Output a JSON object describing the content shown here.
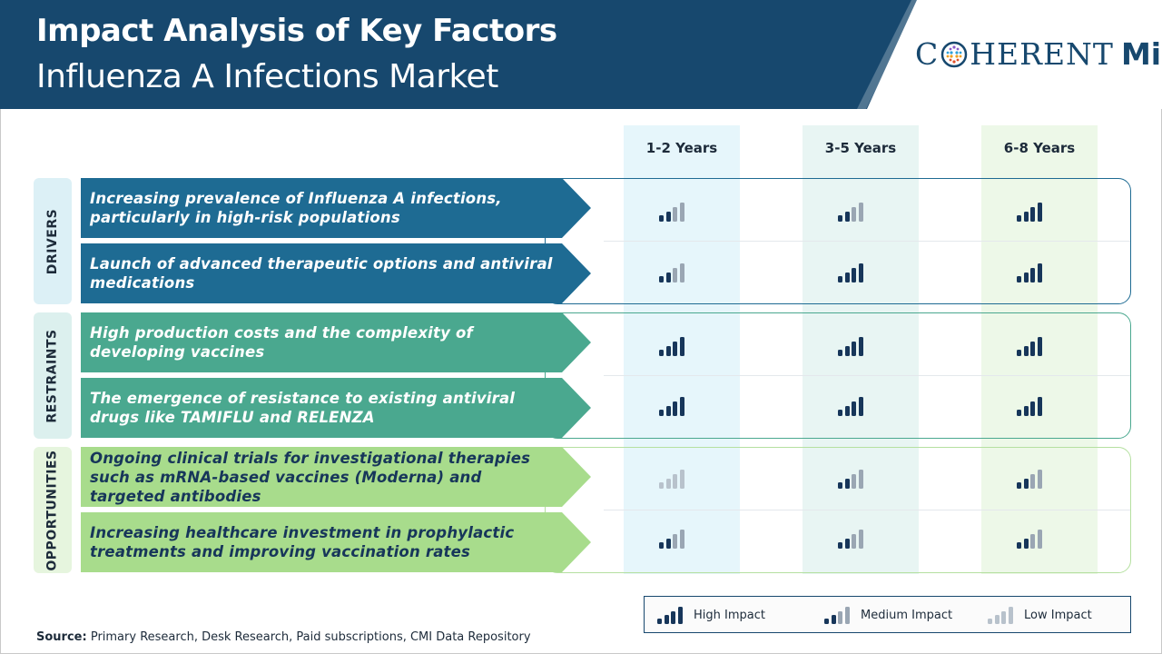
{
  "header": {
    "title": "Impact Analysis of Key Factors",
    "subtitle": "Influenza A Infections Market"
  },
  "logo": {
    "left": "C",
    "middle": "HERENT",
    "right": "Mi"
  },
  "colors": {
    "header": "#17486e",
    "driver": "#1e6b93",
    "restraint": "#4aa88f",
    "opportunity": "#a8dc8c",
    "high": "#17365a",
    "medium_light": "#9aa6b3",
    "low": "#b8c2cc"
  },
  "columns": [
    {
      "label": "1-2 Years",
      "bg": "#e6f6fb"
    },
    {
      "label": "3-5 Years",
      "bg": "#e8f5f3"
    },
    {
      "label": "6-8 Years",
      "bg": "#edf8e8"
    }
  ],
  "categories": [
    {
      "label": "DRIVERS",
      "box_bg": "#dcf0f6",
      "outline": "#1e6b93"
    },
    {
      "label": "RESTRAINTS",
      "box_bg": "#dcf0ee",
      "outline": "#4aa88f"
    },
    {
      "label": "OPPORTUNITIES",
      "box_bg": "#e6f5de",
      "outline": "#b5e0a0"
    }
  ],
  "factors": [
    {
      "category": 0,
      "text": "Increasing prevalence of Influenza A infections, particularly in high-risk populations",
      "impacts": [
        "medium",
        "medium",
        "high"
      ]
    },
    {
      "category": 0,
      "text": "Launch of advanced therapeutic options and antiviral medications",
      "impacts": [
        "medium",
        "high",
        "high"
      ]
    },
    {
      "category": 1,
      "text": "High production costs and the complexity of developing vaccines",
      "impacts": [
        "high",
        "high",
        "high"
      ]
    },
    {
      "category": 1,
      "text": "The emergence of resistance to existing antiviral drugs like TAMIFLU and RELENZA",
      "impacts": [
        "high",
        "high",
        "high"
      ]
    },
    {
      "category": 2,
      "text": "Ongoing clinical trials for investigational therapies such as mRNA-based vaccines (Moderna) and targeted antibodies",
      "impacts": [
        "low",
        "medium",
        "medium"
      ]
    },
    {
      "category": 2,
      "text": "Increasing healthcare investment in prophylactic treatments and improving vaccination rates",
      "impacts": [
        "medium",
        "medium",
        "medium"
      ]
    }
  ],
  "legend": {
    "high": "High Impact",
    "medium": "Medium Impact",
    "low": "Low Impact"
  },
  "source": {
    "label": "Source:",
    "text": "Primary Research, Desk Research, Paid subscriptions, CMI Data Repository"
  }
}
